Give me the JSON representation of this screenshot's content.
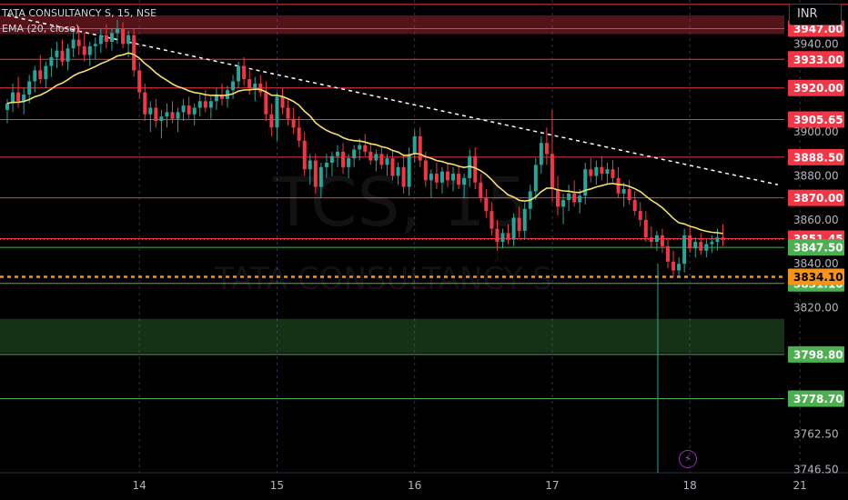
{
  "header": {
    "symbol_line": "TATA CONSULTANCY S, 15, NSE",
    "indicator_label": "EMA (20, close)",
    "currency": "INR"
  },
  "watermark": {
    "ticker": "TCS, 15",
    "name": "TATA CONSULTANCY S"
  },
  "colors": {
    "background": "#000000",
    "resistance": "#f23645",
    "support": "#4caf50",
    "current_price": "#f7931a",
    "ema": "#f2e06b",
    "up_candle": "#26a69a",
    "down_candle": "#f23645",
    "trendline": "#ffffff"
  },
  "icons": {
    "alert": "bolt-icon"
  },
  "chart_data": {
    "type": "candlestick",
    "title": "TATA CONSULTANCY S, 15, NSE",
    "ylim": [
      3745,
      3960
    ],
    "x_ticks": [
      {
        "label": "14",
        "i": 24
      },
      {
        "label": "15",
        "i": 49
      },
      {
        "label": "16",
        "i": 74
      },
      {
        "label": "17",
        "i": 99
      },
      {
        "label": "18",
        "i": 124
      },
      {
        "label": "21",
        "i": 144
      }
    ],
    "y_ticks": [
      3940.0,
      3900.0,
      3880.0,
      3860.0,
      3840.0,
      3820.0,
      3762.5,
      3746.5
    ],
    "resistance_levels": [
      3947.0,
      3933.0,
      3920.0,
      3905.65,
      3888.5,
      3870.0,
      3851.45
    ],
    "support_levels": [
      3847.5,
      3831.1,
      3798.8,
      3778.7
    ],
    "current_price": 3834.1,
    "resistance_zone": [
      3944.5,
      3953.0
    ],
    "support_zone": [
      3799.5,
      3815.0
    ],
    "trendline": {
      "from": {
        "i": 0,
        "price": 3953
      },
      "to": {
        "i": 140,
        "price": 3876
      }
    },
    "ema_period": 20,
    "candles": [
      [
        3910,
        3915,
        3904,
        3913
      ],
      [
        3913,
        3922,
        3909,
        3918
      ],
      [
        3918,
        3925,
        3911,
        3914
      ],
      [
        3914,
        3920,
        3908,
        3917
      ],
      [
        3917,
        3926,
        3913,
        3923
      ],
      [
        3923,
        3930,
        3918,
        3928
      ],
      [
        3928,
        3935,
        3922,
        3924
      ],
      [
        3924,
        3932,
        3920,
        3930
      ],
      [
        3930,
        3938,
        3925,
        3934
      ],
      [
        3934,
        3941,
        3929,
        3937
      ],
      [
        3937,
        3942,
        3930,
        3932
      ],
      [
        3932,
        3940,
        3928,
        3938
      ],
      [
        3938,
        3946,
        3934,
        3942
      ],
      [
        3942,
        3948,
        3935,
        3939
      ],
      [
        3939,
        3945,
        3932,
        3935
      ],
      [
        3935,
        3941,
        3930,
        3939
      ],
      [
        3939,
        3943,
        3933,
        3940
      ],
      [
        3940,
        3947,
        3936,
        3944
      ],
      [
        3944,
        3949,
        3938,
        3941
      ],
      [
        3941,
        3947,
        3937,
        3945
      ],
      [
        3945,
        3951,
        3940,
        3947
      ],
      [
        3947,
        3950,
        3938,
        3940
      ],
      [
        3940,
        3946,
        3934,
        3944
      ],
      [
        3944,
        3947,
        3925,
        3928
      ],
      [
        3928,
        3932,
        3915,
        3918
      ],
      [
        3918,
        3922,
        3905,
        3908
      ],
      [
        3908,
        3914,
        3900,
        3911
      ],
      [
        3911,
        3915,
        3902,
        3905
      ],
      [
        3905,
        3910,
        3897,
        3907
      ],
      [
        3907,
        3913,
        3902,
        3909
      ],
      [
        3909,
        3914,
        3904,
        3906
      ],
      [
        3906,
        3911,
        3900,
        3909
      ],
      [
        3909,
        3915,
        3905,
        3912
      ],
      [
        3912,
        3916,
        3906,
        3908
      ],
      [
        3908,
        3913,
        3903,
        3911
      ],
      [
        3911,
        3917,
        3907,
        3914
      ],
      [
        3914,
        3919,
        3909,
        3911
      ],
      [
        3911,
        3916,
        3906,
        3914
      ],
      [
        3914,
        3920,
        3910,
        3917
      ],
      [
        3917,
        3922,
        3912,
        3915
      ],
      [
        3915,
        3921,
        3911,
        3919
      ],
      [
        3919,
        3926,
        3915,
        3923
      ],
      [
        3923,
        3932,
        3920,
        3930
      ],
      [
        3930,
        3934,
        3921,
        3924
      ],
      [
        3924,
        3928,
        3917,
        3920
      ],
      [
        3920,
        3925,
        3914,
        3922
      ],
      [
        3922,
        3926,
        3916,
        3918
      ],
      [
        3918,
        3923,
        3905,
        3908
      ],
      [
        3908,
        3913,
        3898,
        3902
      ],
      [
        3902,
        3918,
        3896,
        3916
      ],
      [
        3916,
        3920,
        3908,
        3911
      ],
      [
        3911,
        3915,
        3903,
        3906
      ],
      [
        3906,
        3911,
        3899,
        3902
      ],
      [
        3902,
        3907,
        3893,
        3896
      ],
      [
        3896,
        3900,
        3880,
        3883
      ],
      [
        3883,
        3890,
        3876,
        3887
      ],
      [
        3887,
        3890,
        3872,
        3875
      ],
      [
        3875,
        3886,
        3870,
        3884
      ],
      [
        3884,
        3890,
        3879,
        3886
      ],
      [
        3886,
        3891,
        3880,
        3889
      ],
      [
        3889,
        3894,
        3884,
        3891
      ],
      [
        3891,
        3895,
        3881,
        3884
      ],
      [
        3884,
        3890,
        3879,
        3888
      ],
      [
        3888,
        3894,
        3884,
        3892
      ],
      [
        3892,
        3897,
        3887,
        3894
      ],
      [
        3894,
        3899,
        3889,
        3891
      ],
      [
        3891,
        3895,
        3885,
        3887
      ],
      [
        3887,
        3892,
        3882,
        3890
      ],
      [
        3890,
        3893,
        3883,
        3885
      ],
      [
        3885,
        3890,
        3880,
        3888
      ],
      [
        3888,
        3892,
        3878,
        3880
      ],
      [
        3880,
        3886,
        3876,
        3884
      ],
      [
        3884,
        3889,
        3872,
        3875
      ],
      [
        3875,
        3893,
        3871,
        3890
      ],
      [
        3890,
        3901,
        3886,
        3898
      ],
      [
        3898,
        3902,
        3884,
        3887
      ],
      [
        3887,
        3891,
        3875,
        3878
      ],
      [
        3878,
        3883,
        3870,
        3881
      ],
      [
        3881,
        3886,
        3874,
        3877
      ],
      [
        3877,
        3884,
        3872,
        3882
      ],
      [
        3882,
        3886,
        3875,
        3878
      ],
      [
        3878,
        3884,
        3873,
        3881
      ],
      [
        3881,
        3885,
        3874,
        3876
      ],
      [
        3876,
        3881,
        3870,
        3879
      ],
      [
        3879,
        3892,
        3875,
        3889
      ],
      [
        3889,
        3893,
        3874,
        3877
      ],
      [
        3877,
        3881,
        3868,
        3870
      ],
      [
        3870,
        3874,
        3861,
        3864
      ],
      [
        3864,
        3868,
        3853,
        3856
      ],
      [
        3856,
        3860,
        3846,
        3850
      ],
      [
        3850,
        3856,
        3847,
        3854
      ],
      [
        3854,
        3858,
        3849,
        3851
      ],
      [
        3851,
        3863,
        3848,
        3861
      ],
      [
        3861,
        3866,
        3852,
        3855
      ],
      [
        3855,
        3868,
        3851,
        3865
      ],
      [
        3865,
        3876,
        3860,
        3873
      ],
      [
        3873,
        3888,
        3869,
        3885
      ],
      [
        3885,
        3898,
        3881,
        3895
      ],
      [
        3895,
        3902,
        3885,
        3890
      ],
      [
        3890,
        3910,
        3868,
        3874
      ],
      [
        3874,
        3880,
        3862,
        3866
      ],
      [
        3866,
        3872,
        3858,
        3869
      ],
      [
        3869,
        3876,
        3864,
        3872
      ],
      [
        3872,
        3878,
        3866,
        3868
      ],
      [
        3868,
        3874,
        3863,
        3871
      ],
      [
        3871,
        3886,
        3867,
        3883
      ],
      [
        3883,
        3888,
        3877,
        3880
      ],
      [
        3880,
        3887,
        3876,
        3884
      ],
      [
        3884,
        3889,
        3878,
        3881
      ],
      [
        3881,
        3886,
        3876,
        3883
      ],
      [
        3883,
        3887,
        3877,
        3879
      ],
      [
        3879,
        3884,
        3870,
        3872
      ],
      [
        3872,
        3877,
        3866,
        3874
      ],
      [
        3874,
        3878,
        3867,
        3869
      ],
      [
        3869,
        3873,
        3862,
        3864
      ],
      [
        3864,
        3868,
        3857,
        3860
      ],
      [
        3860,
        3864,
        3850,
        3852
      ],
      [
        3852,
        3857,
        3847,
        3850
      ],
      [
        3850,
        3855,
        3846,
        3853
      ],
      [
        3853,
        3856,
        3845,
        3848
      ],
      [
        3848,
        3852,
        3838,
        3841
      ],
      [
        3841,
        3846,
        3834,
        3837
      ],
      [
        3837,
        3843,
        3834,
        3840
      ],
      [
        3840,
        3856,
        3836,
        3853
      ],
      [
        3853,
        3857,
        3845,
        3847
      ],
      [
        3847,
        3852,
        3843,
        3850
      ],
      [
        3850,
        3854,
        3844,
        3846
      ],
      [
        3846,
        3851,
        3843,
        3849
      ],
      [
        3849,
        3853,
        3845,
        3850
      ],
      [
        3850,
        3856,
        3846,
        3852
      ],
      [
        3852,
        3858,
        3848,
        3851
      ]
    ]
  }
}
